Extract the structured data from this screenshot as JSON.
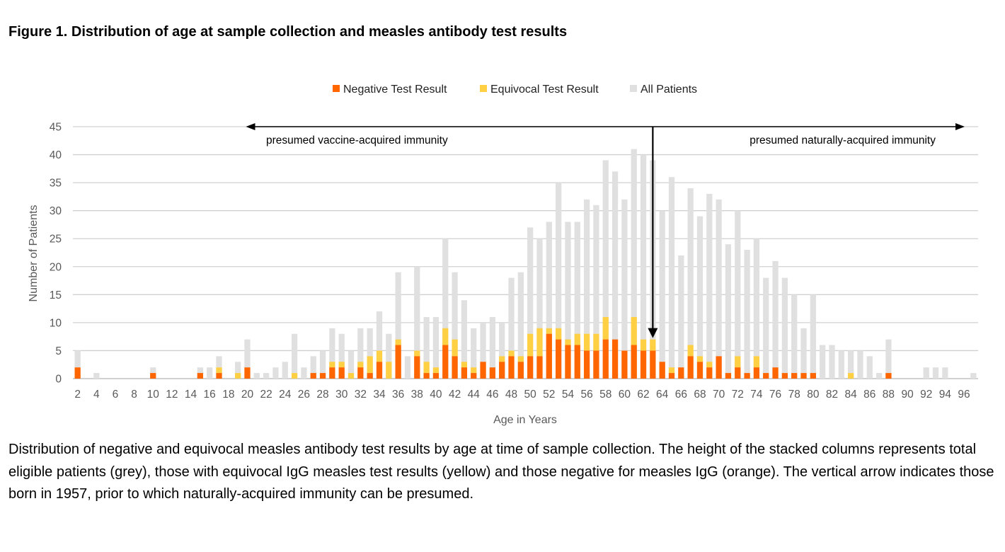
{
  "figure_title": "Figure 1. Distribution of age at sample collection and measles antibody test results",
  "caption": "Distribution of negative and equivocal measles antibody test results by age at time of sample collection. The height of the stacked columns represents total eligible patients (grey), those with equivocal IgG measles test results (yellow) and those negative for measles IgG (orange). The vertical arrow indicates those born in 1957, prior to which naturally-acquired immunity can be presumed.",
  "colors": {
    "negative": "#FF6600",
    "equivocal": "#FFD044",
    "all": "#E0E0E0",
    "grid": "#D0D0D0",
    "axis_text": "#595959",
    "arrow": "#000000"
  },
  "chart_data": {
    "type": "bar",
    "stacked": true,
    "title": "",
    "xlabel": "Age in Years",
    "ylabel": "Number of Patients",
    "ylim": [
      0,
      45
    ],
    "yticks": [
      0,
      5,
      10,
      15,
      20,
      25,
      30,
      35,
      40,
      45
    ],
    "grid": true,
    "legend_position": "top-center",
    "legend": [
      {
        "key": "negative",
        "label": "Negative Test Result"
      },
      {
        "key": "equivocal",
        "label": "Equivocal Test Result"
      },
      {
        "key": "all",
        "label": "All Patients"
      }
    ],
    "x_tick_labels": [
      "2",
      "4",
      "6",
      "8",
      "10",
      "12",
      "14",
      "16",
      "18",
      "20",
      "22",
      "24",
      "26",
      "28",
      "30",
      "32",
      "34",
      "36",
      "38",
      "40",
      "42",
      "44",
      "46",
      "48",
      "50",
      "52",
      "54",
      "56",
      "58",
      "60",
      "62",
      "64",
      "66",
      "68",
      "70",
      "72",
      "74",
      "76",
      "78",
      "80",
      "82",
      "84",
      "86",
      "88",
      "90",
      "92",
      "94",
      "96"
    ],
    "categories": [
      2,
      3,
      4,
      5,
      6,
      7,
      8,
      9,
      10,
      11,
      12,
      13,
      14,
      15,
      16,
      17,
      18,
      19,
      20,
      21,
      22,
      23,
      24,
      25,
      26,
      27,
      28,
      29,
      30,
      31,
      32,
      33,
      34,
      35,
      36,
      37,
      38,
      39,
      40,
      41,
      42,
      43,
      44,
      45,
      46,
      47,
      48,
      49,
      50,
      51,
      52,
      53,
      54,
      55,
      56,
      57,
      58,
      59,
      60,
      61,
      62,
      63,
      64,
      65,
      66,
      67,
      68,
      69,
      70,
      71,
      72,
      73,
      74,
      75,
      76,
      77,
      78,
      79,
      80,
      81,
      82,
      83,
      84,
      85,
      86,
      87,
      88,
      89,
      90,
      91,
      92,
      93,
      94,
      95,
      96,
      97
    ],
    "series": [
      {
        "name": "All Patients",
        "key": "all",
        "values": [
          5,
          0,
          1,
          0,
          0,
          0,
          0,
          0,
          2,
          0,
          0,
          0,
          0,
          2,
          2,
          4,
          0,
          3,
          7,
          1,
          1,
          2,
          3,
          8,
          2,
          4,
          5,
          9,
          8,
          5,
          9,
          9,
          12,
          8,
          19,
          4,
          20,
          11,
          11,
          25,
          19,
          14,
          9,
          10,
          11,
          10,
          18,
          19,
          27,
          25,
          28,
          35,
          28,
          28,
          32,
          31,
          39,
          37,
          32,
          41,
          40,
          39,
          30,
          36,
          22,
          34,
          29,
          33,
          32,
          24,
          30,
          23,
          25,
          18,
          21,
          18,
          15,
          9,
          15,
          6,
          6,
          5,
          5,
          5,
          4,
          1,
          7,
          0,
          0,
          0,
          2,
          2,
          2,
          0,
          0,
          1
        ]
      },
      {
        "name": "Equivocal Test Result",
        "key": "equivocal",
        "values": [
          0,
          0,
          0,
          0,
          0,
          0,
          0,
          0,
          0,
          0,
          0,
          0,
          0,
          0,
          0,
          1,
          0,
          1,
          0,
          0,
          0,
          0,
          0,
          1,
          0,
          0,
          0,
          1,
          1,
          1,
          1,
          3,
          2,
          3,
          1,
          0,
          1,
          2,
          1,
          3,
          3,
          1,
          1,
          0,
          0,
          1,
          1,
          1,
          4,
          5,
          1,
          2,
          1,
          2,
          3,
          3,
          4,
          0,
          0,
          5,
          2,
          2,
          0,
          1,
          0,
          2,
          1,
          1,
          0,
          0,
          2,
          0,
          2,
          0,
          0,
          0,
          0,
          0,
          0,
          0,
          0,
          0,
          1,
          0,
          0,
          0,
          0,
          0,
          0,
          0,
          0,
          0,
          0,
          0,
          0,
          0
        ]
      },
      {
        "name": "Negative Test Result",
        "key": "negative",
        "values": [
          2,
          0,
          0,
          0,
          0,
          0,
          0,
          0,
          1,
          0,
          0,
          0,
          0,
          1,
          0,
          1,
          0,
          0,
          2,
          0,
          0,
          0,
          0,
          0,
          0,
          1,
          1,
          2,
          2,
          0,
          2,
          1,
          3,
          0,
          6,
          0,
          4,
          1,
          1,
          6,
          4,
          2,
          1,
          3,
          2,
          3,
          4,
          3,
          4,
          4,
          8,
          7,
          6,
          6,
          5,
          5,
          7,
          7,
          5,
          6,
          5,
          5,
          3,
          1,
          2,
          4,
          3,
          2,
          4,
          1,
          2,
          1,
          2,
          1,
          2,
          1,
          1,
          1,
          1,
          0,
          0,
          0,
          0,
          0,
          0,
          0,
          1,
          0,
          0,
          0,
          0,
          0,
          0,
          0,
          0,
          0
        ]
      }
    ],
    "annotations": {
      "left_arrow_label": "presumed vaccine-acquired immunity",
      "right_arrow_label": "presumed naturally-acquired immunity",
      "left_arrow_to_age": 20,
      "right_arrow_to_age": 96,
      "vertical_arrow_age": 63,
      "vertical_arrow_to_value": 7
    }
  }
}
